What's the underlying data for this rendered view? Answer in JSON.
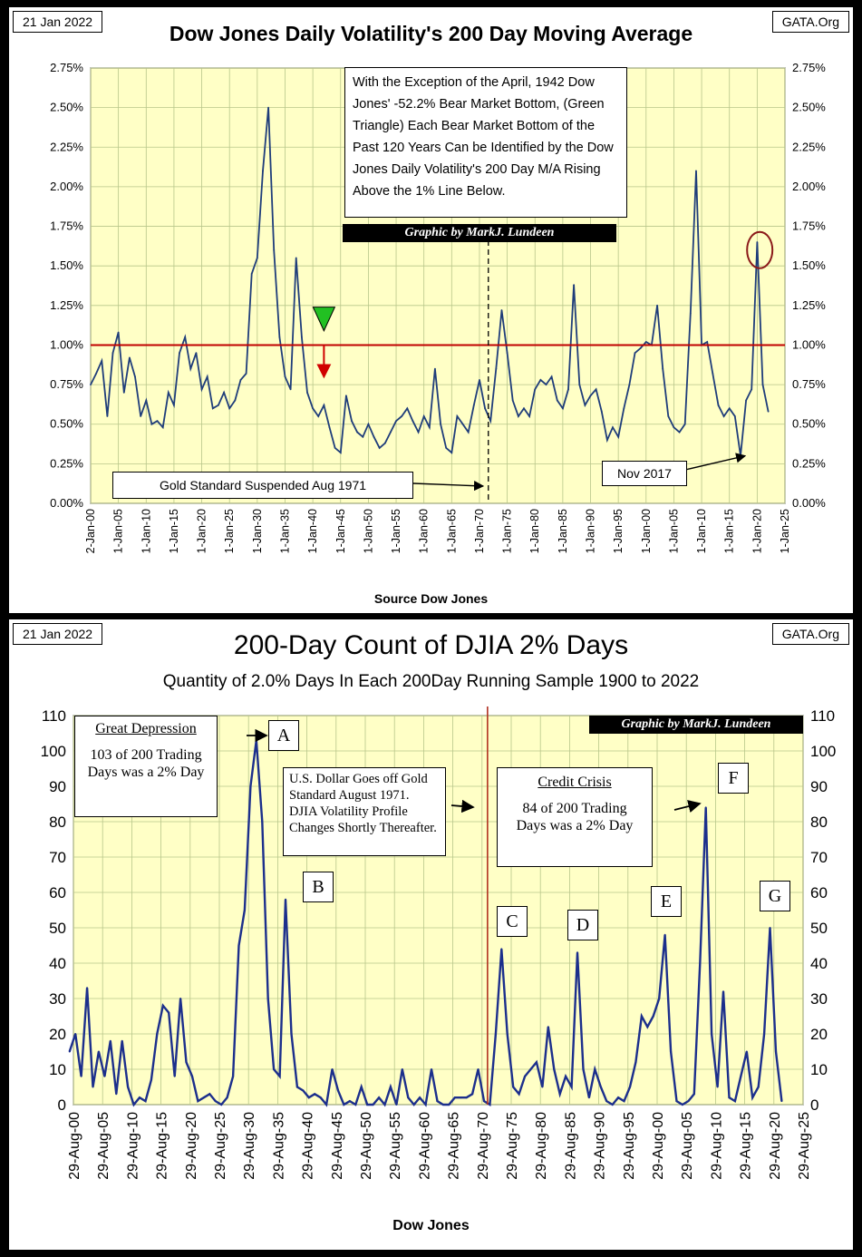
{
  "chart_data": [
    {
      "type": "line",
      "date_tag": "21 Jan 2022",
      "site_tag": "GATA.Org",
      "title": "Dow Jones Daily Volatility's 200 Day Moving Average",
      "xlabel": "Source Dow Jones",
      "ylabel": "",
      "ylim": [
        0,
        2.75
      ],
      "y_ticks": [
        "0.00%",
        "0.25%",
        "0.50%",
        "0.75%",
        "1.00%",
        "1.25%",
        "1.50%",
        "1.75%",
        "2.00%",
        "2.25%",
        "2.50%",
        "2.75%"
      ],
      "x_ticks": [
        "2-Jan-00",
        "1-Jan-05",
        "1-Jan-10",
        "1-Jan-15",
        "1-Jan-20",
        "1-Jan-25",
        "1-Jan-30",
        "1-Jan-35",
        "1-Jan-40",
        "1-Jan-45",
        "1-Jan-50",
        "1-Jan-55",
        "1-Jan-60",
        "1-Jan-65",
        "1-Jan-70",
        "1-Jan-75",
        "1-Jan-80",
        "1-Jan-85",
        "1-Jan-90",
        "1-Jan-95",
        "1-Jan-00",
        "1-Jan-05",
        "1-Jan-10",
        "1-Jan-15",
        "1-Jan-20",
        "1-Jan-25"
      ],
      "xlim": [
        1900,
        2025
      ],
      "reference_line": 1.0,
      "series": [
        {
          "name": "200 Day M/A of Daily Volatility",
          "x": [
            1900,
            1901,
            1902,
            1903,
            1904,
            1905,
            1906,
            1907,
            1908,
            1909,
            1910,
            1911,
            1912,
            1913,
            1914,
            1915,
            1916,
            1917,
            1918,
            1919,
            1920,
            1921,
            1922,
            1923,
            1924,
            1925,
            1926,
            1927,
            1928,
            1929,
            1930,
            1931,
            1932,
            1933,
            1934,
            1935,
            1936,
            1937,
            1938,
            1939,
            1940,
            1941,
            1942,
            1943,
            1944,
            1945,
            1946,
            1947,
            1948,
            1949,
            1950,
            1951,
            1952,
            1953,
            1954,
            1955,
            1956,
            1957,
            1958,
            1959,
            1960,
            1961,
            1962,
            1963,
            1964,
            1965,
            1966,
            1967,
            1968,
            1969,
            1970,
            1971,
            1972,
            1973,
            1974,
            1975,
            1976,
            1977,
            1978,
            1979,
            1980,
            1981,
            1982,
            1983,
            1984,
            1985,
            1986,
            1987,
            1988,
            1989,
            1990,
            1991,
            1992,
            1993,
            1994,
            1995,
            1996,
            1997,
            1998,
            1999,
            2000,
            2001,
            2002,
            2003,
            2004,
            2005,
            2006,
            2007,
            2008,
            2009,
            2010,
            2011,
            2012,
            2013,
            2014,
            2015,
            2016,
            2017,
            2018,
            2019,
            2020,
            2021,
            2022
          ],
          "y": [
            0.75,
            0.82,
            0.9,
            0.55,
            0.95,
            1.08,
            0.7,
            0.92,
            0.8,
            0.55,
            0.65,
            0.5,
            0.52,
            0.48,
            0.7,
            0.62,
            0.95,
            1.05,
            0.85,
            0.95,
            0.72,
            0.8,
            0.6,
            0.62,
            0.7,
            0.6,
            0.65,
            0.78,
            0.82,
            1.45,
            1.55,
            2.1,
            2.5,
            1.6,
            1.05,
            0.8,
            0.72,
            1.55,
            1.05,
            0.7,
            0.6,
            0.55,
            0.62,
            0.48,
            0.35,
            0.32,
            0.68,
            0.52,
            0.45,
            0.42,
            0.5,
            0.42,
            0.35,
            0.38,
            0.45,
            0.52,
            0.55,
            0.6,
            0.52,
            0.45,
            0.55,
            0.48,
            0.85,
            0.5,
            0.35,
            0.32,
            0.55,
            0.5,
            0.45,
            0.62,
            0.78,
            0.6,
            0.52,
            0.85,
            1.22,
            0.95,
            0.65,
            0.55,
            0.6,
            0.55,
            0.72,
            0.78,
            0.75,
            0.8,
            0.65,
            0.6,
            0.72,
            1.38,
            0.75,
            0.62,
            0.68,
            0.72,
            0.58,
            0.4,
            0.48,
            0.42,
            0.6,
            0.75,
            0.95,
            0.98,
            1.02,
            1.0,
            1.25,
            0.85,
            0.55,
            0.48,
            0.45,
            0.5,
            1.2,
            2.1,
            1.0,
            1.02,
            0.82,
            0.62,
            0.55,
            0.6,
            0.55,
            0.3,
            0.65,
            0.72,
            1.65,
            0.75,
            0.58
          ]
        }
      ],
      "annotations": {
        "box": "With the Exception of the April, 1942 Dow Jones' -52.2% Bear Market Bottom, (Green Triangle) Each Bear Market Bottom of the Past 120 Years Can be Identified by the Dow Jones Daily Volatility's 200 Day M/A Rising Above the 1% Line Below.",
        "credit": "Graphic by MarkJ. Lundeen",
        "gold": "Gold Standard Suspended Aug 1971",
        "nov": "Nov 2017",
        "green_triangle_year": 1942,
        "gold_standard_year": 1971.6,
        "circle_year": 2020.3
      }
    },
    {
      "type": "line",
      "date_tag": "21 Jan 2022",
      "site_tag": "GATA.Org",
      "title": "200-Day Count of  DJIA 2% Days",
      "subtitle": "Quantity of 2.0% Days In Each 200Day Running Sample 1900 to 2022",
      "xlabel": "Dow Jones",
      "ylim": [
        0,
        110
      ],
      "y_ticks": [
        "0",
        "10",
        "20",
        "30",
        "40",
        "50",
        "60",
        "70",
        "80",
        "90",
        "100",
        "110"
      ],
      "x_ticks": [
        "29-Aug-00",
        "29-Aug-05",
        "29-Aug-10",
        "29-Aug-15",
        "29-Aug-20",
        "29-Aug-25",
        "29-Aug-30",
        "29-Aug-35",
        "29-Aug-40",
        "29-Aug-45",
        "29-Aug-50",
        "29-Aug-55",
        "29-Aug-60",
        "29-Aug-65",
        "29-Aug-70",
        "29-Aug-75",
        "29-Aug-80",
        "29-Aug-85",
        "29-Aug-90",
        "29-Aug-95",
        "29-Aug-00",
        "29-Aug-05",
        "29-Aug-10",
        "29-Aug-15",
        "29-Aug-20",
        "29-Aug-25"
      ],
      "xlim": [
        1900.66,
        2025.66
      ],
      "series": [
        {
          "name": "200-Day Count of 2% Days",
          "x": [
            1900,
            1901,
            1902,
            1903,
            1904,
            1905,
            1906,
            1907,
            1908,
            1909,
            1910,
            1911,
            1912,
            1913,
            1914,
            1915,
            1916,
            1917,
            1918,
            1919,
            1920,
            1921,
            1922,
            1923,
            1924,
            1925,
            1926,
            1927,
            1928,
            1929,
            1930,
            1931,
            1932,
            1933,
            1934,
            1935,
            1936,
            1937,
            1938,
            1939,
            1940,
            1941,
            1942,
            1943,
            1944,
            1945,
            1946,
            1947,
            1948,
            1949,
            1950,
            1951,
            1952,
            1953,
            1954,
            1955,
            1956,
            1957,
            1958,
            1959,
            1960,
            1961,
            1962,
            1963,
            1964,
            1965,
            1966,
            1967,
            1968,
            1969,
            1970,
            1971,
            1972,
            1973,
            1974,
            1975,
            1976,
            1977,
            1978,
            1979,
            1980,
            1981,
            1982,
            1983,
            1984,
            1985,
            1986,
            1987,
            1988,
            1989,
            1990,
            1991,
            1992,
            1993,
            1994,
            1995,
            1996,
            1997,
            1998,
            1999,
            2000,
            2001,
            2002,
            2003,
            2004,
            2005,
            2006,
            2007,
            2008,
            2009,
            2010,
            2011,
            2012,
            2013,
            2014,
            2015,
            2016,
            2017,
            2018,
            2019,
            2020,
            2021,
            2022
          ],
          "y": [
            15,
            20,
            8,
            33,
            5,
            15,
            8,
            18,
            3,
            18,
            5,
            0,
            2,
            1,
            7,
            20,
            28,
            26,
            8,
            30,
            12,
            8,
            1,
            2,
            3,
            1,
            0,
            2,
            8,
            45,
            55,
            90,
            103,
            80,
            30,
            10,
            8,
            58,
            20,
            5,
            4,
            2,
            3,
            2,
            0,
            10,
            4,
            0,
            1,
            0,
            5,
            0,
            0,
            2,
            0,
            5,
            0,
            10,
            2,
            0,
            2,
            0,
            10,
            1,
            0,
            0,
            2,
            2,
            2,
            3,
            10,
            1,
            0,
            20,
            44,
            20,
            5,
            3,
            8,
            10,
            12,
            5,
            22,
            10,
            3,
            8,
            5,
            43,
            10,
            2,
            10,
            5,
            1,
            0,
            2,
            1,
            5,
            12,
            25,
            22,
            25,
            30,
            48,
            15,
            1,
            0,
            1,
            3,
            40,
            84,
            20,
            5,
            32,
            2,
            1,
            8,
            15,
            2,
            5,
            20,
            50,
            15,
            1
          ]
        }
      ],
      "annotations": {
        "credit": "Graphic by MarkJ. Lundeen",
        "great_depression_title": "Great Depression",
        "great_depression_text": "103 of 200 Trading Days was a 2% Day",
        "usd_text": "U.S. Dollar Goes off Gold Standard August 1971. DJIA Volatility Profile Changes Shortly Thereafter.",
        "credit_crisis_title": "Credit Crisis",
        "credit_crisis_text": "84 of 200 Trading Days was a 2% Day",
        "labels": [
          {
            "letter": "A",
            "year": 1932.5,
            "value": 103
          },
          {
            "letter": "B",
            "year": 1937.5,
            "value": 58
          },
          {
            "letter": "C",
            "year": 1974.5,
            "value": 44
          },
          {
            "letter": "D",
            "year": 1987.5,
            "value": 43
          },
          {
            "letter": "E",
            "year": 2002.5,
            "value": 48
          },
          {
            "letter": "F",
            "year": 2008.8,
            "value": 84
          },
          {
            "letter": "G",
            "year": 2020.3,
            "value": 50
          }
        ],
        "gold_standard_year": 1971.6
      }
    }
  ]
}
